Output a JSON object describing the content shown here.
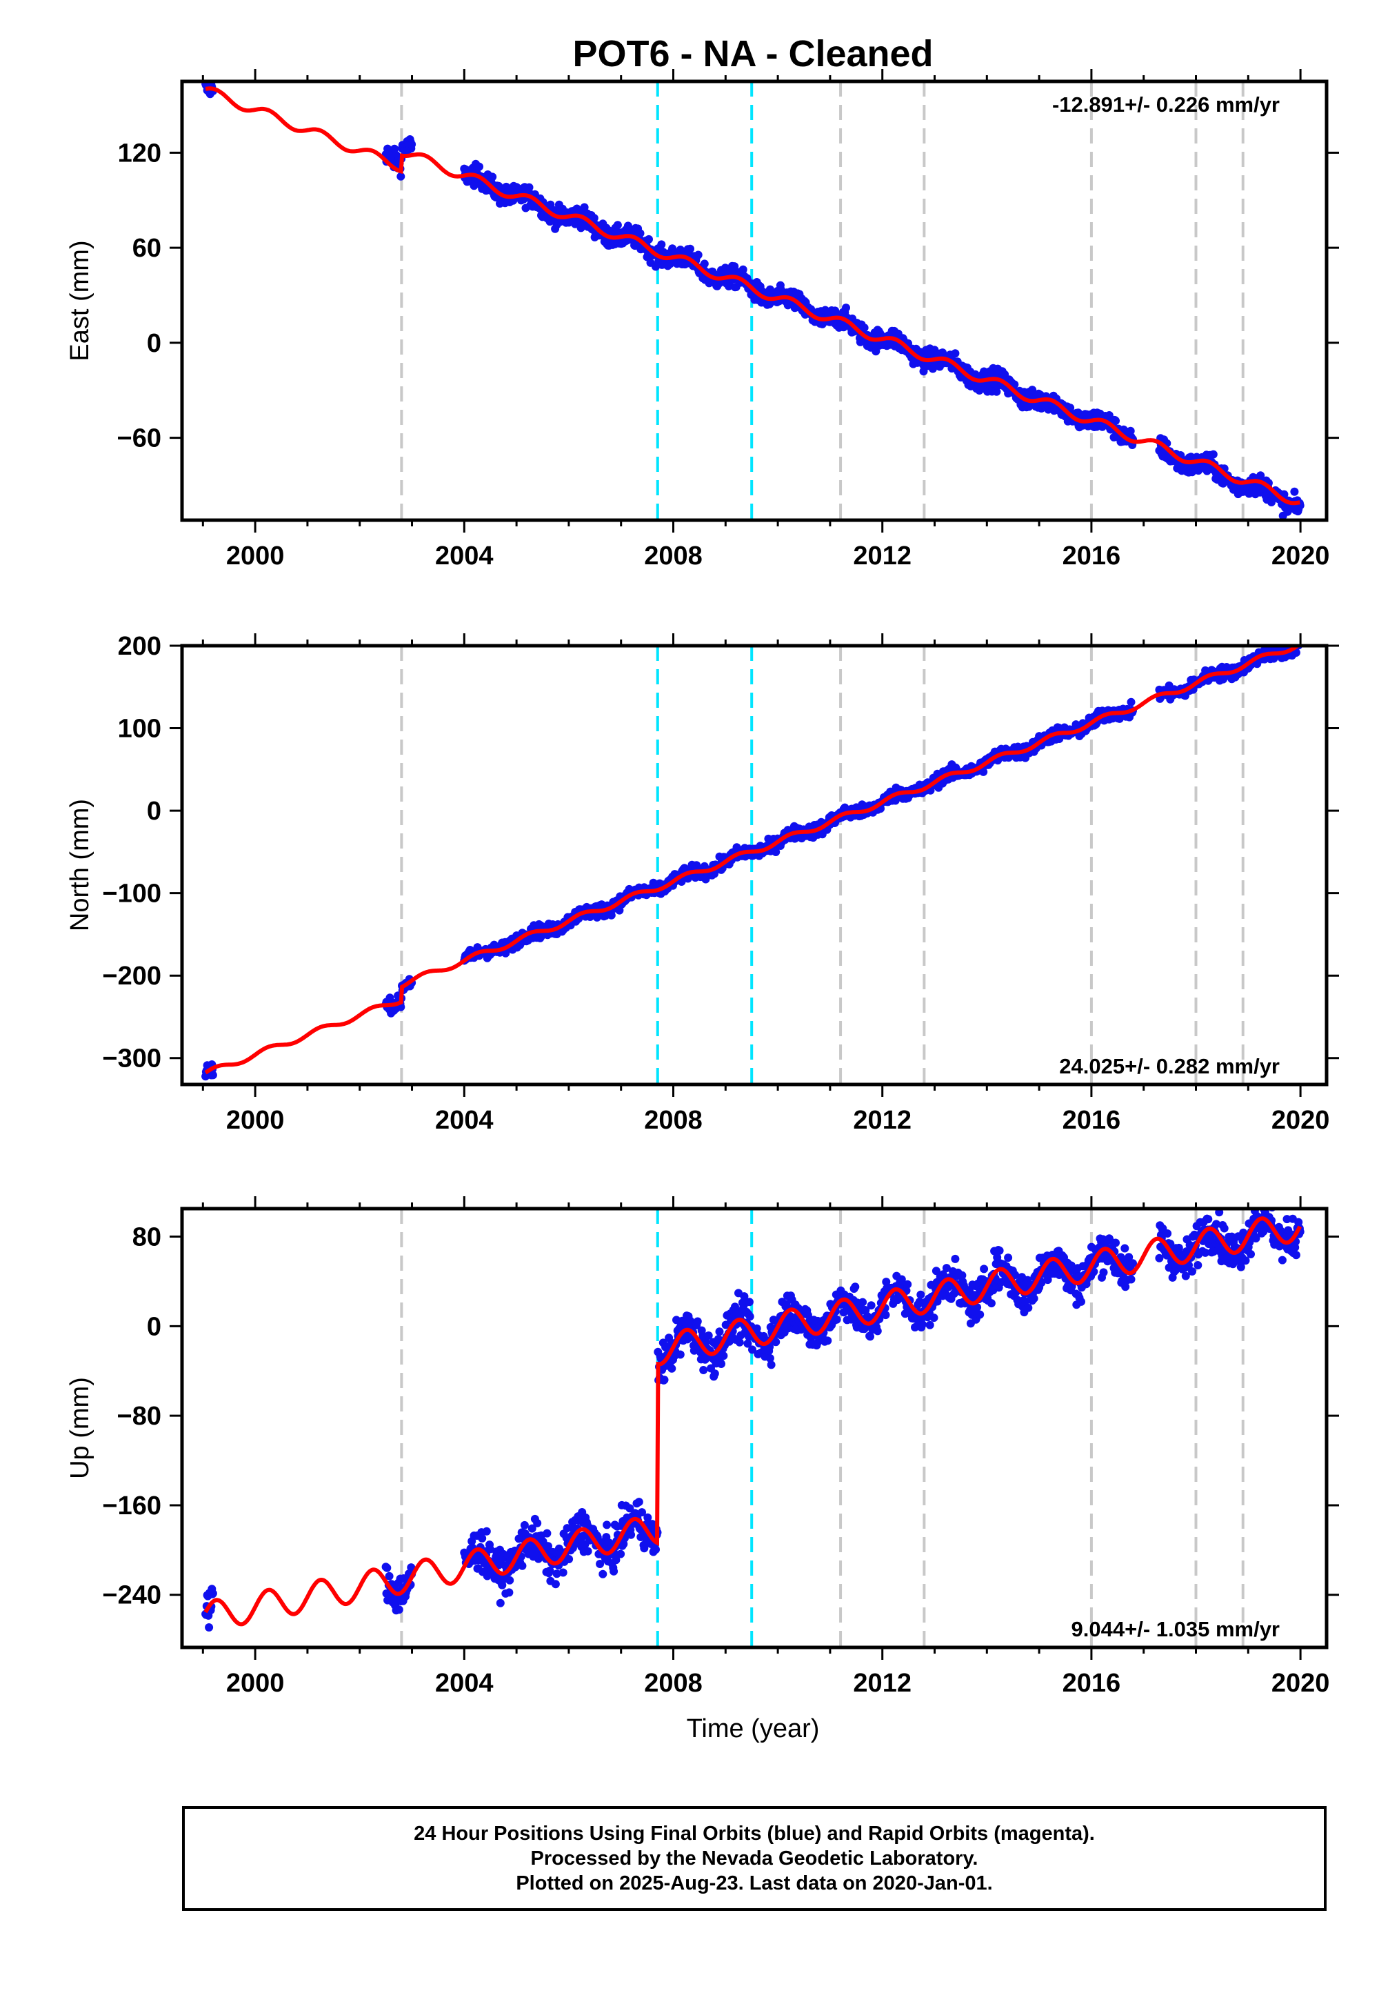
{
  "title": "POT6  - NA - Cleaned",
  "xlabel": "Time (year)",
  "colors": {
    "data": "#1010ee",
    "model": "#ff0000",
    "gray_line": "#c8c8c8",
    "cyan_line": "#00e5ff"
  },
  "footer": {
    "line1": "24 Hour Positions Using Final Orbits (blue) and Rapid Orbits (magenta).",
    "line2": "Processed by the Nevada Geodetic Laboratory.",
    "line3": "Plotted on 2025-Aug-23. Last data on 2020-Jan-01."
  },
  "chart_data": [
    {
      "type": "scatter",
      "component": "east",
      "ylabel": "East (mm)",
      "rate_text": "-12.891+/- 0.226 mm/yr",
      "rate_position": "top-right",
      "xlim": [
        1998.6,
        2020.5
      ],
      "ylim": [
        -112,
        165
      ],
      "xticks": [
        2000,
        2004,
        2008,
        2012,
        2016,
        2020
      ],
      "yticks": [
        120,
        60,
        0,
        -60
      ],
      "ytick_labels": [
        "120",
        "60",
        "0",
        "−60"
      ],
      "gray_breaks": [
        2002.8,
        2011.2,
        2012.8,
        2016.0,
        2018.0,
        2018.9
      ],
      "cyan_breaks": [
        2007.7,
        2009.5
      ],
      "data_segments": [
        {
          "start": 1999.05,
          "end": 1999.2,
          "offset": 0
        },
        {
          "start": 2002.5,
          "end": 2003.0,
          "offset": 5
        },
        {
          "start": 2004.0,
          "end": 2016.8,
          "offset": 0
        },
        {
          "start": 2017.3,
          "end": 2020.0,
          "offset": -2
        }
      ],
      "model": {
        "ref_year": 1999.0,
        "ref_value": 160,
        "rate": -12.891,
        "annual_amp": 3.0,
        "noise": 3.2,
        "steps": [
          {
            "year": 2002.8,
            "delta": 10
          }
        ]
      }
    },
    {
      "type": "scatter",
      "component": "north",
      "ylabel": "North (mm)",
      "rate_text": "24.025+/- 0.282 mm/yr",
      "rate_position": "bottom-right",
      "xlim": [
        1998.6,
        2020.5
      ],
      "ylim": [
        -332,
        200
      ],
      "xticks": [
        2000,
        2004,
        2008,
        2012,
        2016,
        2020
      ],
      "yticks": [
        200,
        100,
        0,
        -100,
        -200,
        -300
      ],
      "ytick_labels": [
        "200",
        "100",
        "0",
        "−100",
        "−200",
        "−300"
      ],
      "gray_breaks": [
        2002.8,
        2011.2,
        2012.8,
        2016.0,
        2018.0,
        2018.9
      ],
      "cyan_breaks": [
        2007.7,
        2009.5
      ],
      "data_segments": [
        {
          "start": 1999.05,
          "end": 1999.2,
          "offset": 0
        },
        {
          "start": 2002.5,
          "end": 2003.0,
          "offset": 0
        },
        {
          "start": 2004.0,
          "end": 2016.8,
          "offset": 0
        },
        {
          "start": 2017.3,
          "end": 2020.0,
          "offset": 0
        }
      ],
      "model": {
        "ref_year": 1999.0,
        "ref_value": -320,
        "rate": 24.025,
        "annual_amp": 3.5,
        "noise": 4.0,
        "steps": [
          {
            "year": 2002.8,
            "delta": 18
          }
        ]
      }
    },
    {
      "type": "scatter",
      "component": "up",
      "ylabel": "Up (mm)",
      "rate_text": "9.044+/- 1.035 mm/yr",
      "rate_position": "bottom-right",
      "xlim": [
        1998.6,
        2020.5
      ],
      "ylim": [
        -287,
        105
      ],
      "xticks": [
        2000,
        2004,
        2008,
        2012,
        2016,
        2020
      ],
      "yticks": [
        80,
        0,
        -80,
        -160,
        -240
      ],
      "ytick_labels": [
        "80",
        "0",
        "−80",
        "−160",
        "−240"
      ],
      "gray_breaks": [
        2002.8,
        2011.2,
        2012.8,
        2016.0,
        2018.0,
        2018.9
      ],
      "cyan_breaks": [
        2007.7,
        2009.5
      ],
      "data_segments": [
        {
          "start": 1999.05,
          "end": 1999.2,
          "offset": 0
        },
        {
          "start": 2002.5,
          "end": 2003.0,
          "offset": 0
        },
        {
          "start": 2004.0,
          "end": 2016.8,
          "offset": 0
        },
        {
          "start": 2017.3,
          "end": 2020.0,
          "offset": 0
        }
      ],
      "model": {
        "ref_year": 1999.0,
        "ref_value": -260,
        "rate": 9.044,
        "annual_amp": 13.0,
        "noise": 9.0,
        "steps": [
          {
            "year": 2007.7,
            "delta": 160
          }
        ]
      }
    }
  ]
}
